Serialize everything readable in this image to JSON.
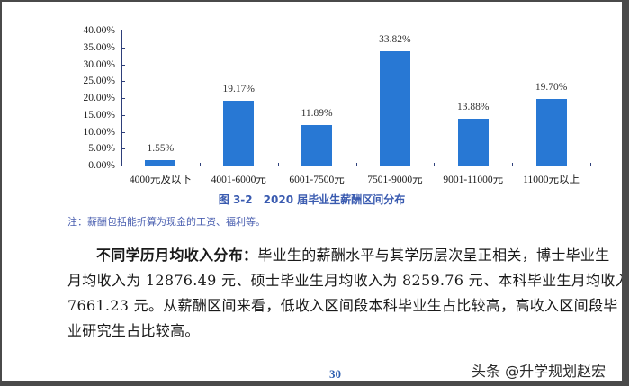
{
  "chart_data": {
    "type": "bar",
    "title": "图 3-2　2020 届毕业生薪酬区间分布",
    "xlabel": "",
    "ylabel": "",
    "categories": [
      "4000元及以下",
      "4001-6000元",
      "6001-7500元",
      "7501-9000元",
      "9001-11000元",
      "11000元以上"
    ],
    "values": [
      1.55,
      19.17,
      11.89,
      33.82,
      13.88,
      19.7
    ],
    "value_labels": [
      "1.55%",
      "19.17%",
      "11.89%",
      "33.82%",
      "13.88%",
      "19.70%"
    ],
    "ylim": [
      0,
      40
    ],
    "yticks": [
      "0.00%",
      "5.00%",
      "10.00%",
      "15.00%",
      "20.00%",
      "25.00%",
      "30.00%",
      "35.00%",
      "40.00%"
    ],
    "grid": false,
    "legend": null,
    "bar_color": "#2878d4"
  },
  "caption": "图 3-2　2020 届毕业生薪酬区间分布",
  "note": "注：薪酬包括能折算为现金的工资、福利等。",
  "paragraph": {
    "lead": "不同学历月均收入分布：",
    "line1_rest": "毕业生的薪酬水平与其学历层次呈正相关，博士毕业生",
    "line2": "月均收入为 12876.49 元、硕士毕业生月均收入为 8259.76 元、本科毕业生月均收入",
    "line3": "7661.23 元。从薪酬区间来看，低收入区间段本科毕业生占比较高，高收入区间段毕",
    "line4": "业研究生占比较高。"
  },
  "page_number": "30",
  "watermark": "头条 @升学规划赵宏"
}
